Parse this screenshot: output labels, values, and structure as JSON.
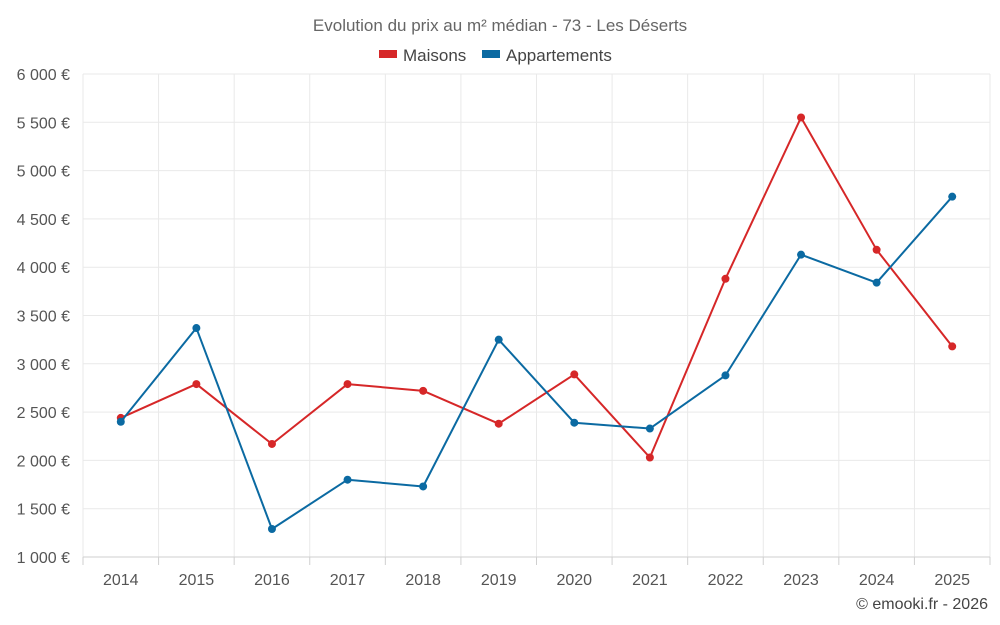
{
  "chart_data": {
    "type": "line",
    "title": "Evolution du prix au m² médian - 73 - Les Déserts",
    "categories": [
      "2014",
      "2015",
      "2016",
      "2017",
      "2018",
      "2019",
      "2020",
      "2021",
      "2022",
      "2023",
      "2024",
      "2025"
    ],
    "series": [
      {
        "name": "Maisons",
        "color": "#d62728",
        "values": [
          2440,
          2790,
          2170,
          2790,
          2720,
          2380,
          2890,
          2030,
          3880,
          5550,
          4180,
          3180
        ]
      },
      {
        "name": "Appartements",
        "color": "#0b6aa2",
        "values": [
          2400,
          3370,
          1290,
          1800,
          1730,
          3250,
          2390,
          2330,
          2880,
          4130,
          3840,
          4730
        ]
      }
    ],
    "ylim": [
      1000,
      6000
    ],
    "yticks": [
      1000,
      1500,
      2000,
      2500,
      3000,
      3500,
      4000,
      4500,
      5000,
      5500,
      6000
    ],
    "ytick_labels": [
      "1 000 €",
      "1 500 €",
      "2 000 €",
      "2 500 €",
      "3 000 €",
      "3 500 €",
      "4 000 €",
      "4 500 €",
      "5 000 €",
      "5 500 €",
      "6 000 €"
    ],
    "xlabel": "",
    "ylabel": "",
    "grid": true,
    "legend_position": "top-center"
  },
  "credit": "© emooki.fr - 2026"
}
